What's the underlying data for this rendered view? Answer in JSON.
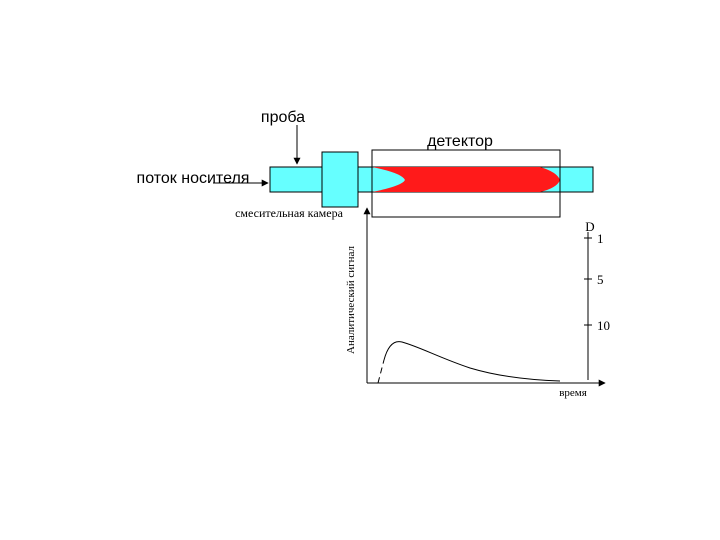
{
  "labels": {
    "sample": "проба",
    "detector": "детектор",
    "carrier": "поток носителя",
    "mixing": "смесительная камера",
    "y_axis": "Аналитический сигнал",
    "x_axis": "время"
  },
  "dispersion": {
    "title": "D",
    "ticks": [
      "1",
      "5",
      "10"
    ]
  }
}
